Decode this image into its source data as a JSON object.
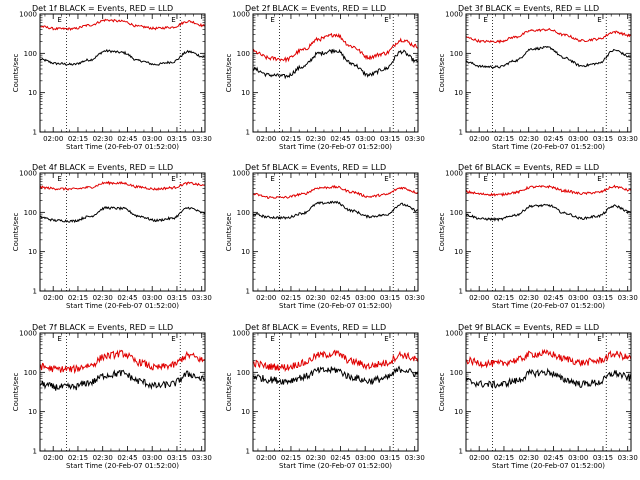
{
  "figure": {
    "xlabel": "Start Time (20-Feb-07 01:52:00)",
    "ylabel": "Counts/sec",
    "marker": "E",
    "x_tick_labels": [
      "02:00",
      "02:15",
      "02:30",
      "02:45",
      "03:00",
      "03:15",
      "03:30"
    ],
    "y_tick_labels": [
      "1",
      "10",
      "100",
      "1000"
    ],
    "colors": {
      "events": "#000000",
      "lld": "#e00000",
      "axis": "#000000",
      "background": "#ffffff"
    }
  },
  "chart_data": [
    {
      "type": "line",
      "title": "Det 1f BLACK = Events, RED = LLD",
      "xlabel": "Start Time (20-Feb-07 01:52:00)",
      "ylabel": "Counts/sec",
      "x_unit": "minutes from 01:52:00",
      "xlim": [
        0,
        100
      ],
      "ylim": [
        1,
        1000
      ],
      "yscale": "log",
      "event_markers": [
        16,
        85
      ],
      "x": [
        0,
        10,
        20,
        30,
        40,
        50,
        60,
        70,
        80,
        90,
        100
      ],
      "series": [
        {
          "name": "Events",
          "color": "#000000",
          "values": [
            70,
            55,
            52,
            68,
            115,
            105,
            65,
            52,
            60,
            110,
            80
          ]
        },
        {
          "name": "LLD",
          "color": "#e00000",
          "values": [
            480,
            420,
            420,
            520,
            700,
            650,
            480,
            430,
            460,
            650,
            500
          ]
        }
      ]
    },
    {
      "type": "line",
      "title": "Det 2f BLACK = Events, RED = LLD",
      "xlabel": "Start Time (20-Feb-07 01:52:00)",
      "ylabel": "Counts/sec",
      "x_unit": "minutes from 01:52:00",
      "xlim": [
        0,
        100
      ],
      "ylim": [
        1,
        1000
      ],
      "yscale": "log",
      "event_markers": [
        16,
        85
      ],
      "x": [
        0,
        10,
        20,
        30,
        40,
        50,
        60,
        70,
        80,
        90,
        100
      ],
      "series": [
        {
          "name": "Events",
          "color": "#000000",
          "values": [
            40,
            28,
            26,
            45,
            100,
            120,
            55,
            28,
            40,
            110,
            60
          ]
        },
        {
          "name": "LLD",
          "color": "#e00000",
          "values": [
            110,
            75,
            70,
            120,
            230,
            300,
            150,
            80,
            100,
            220,
            150
          ]
        }
      ]
    },
    {
      "type": "line",
      "title": "Det 3f BLACK = Events, RED = LLD",
      "xlabel": "Start Time (20-Feb-07 01:52:00)",
      "ylabel": "Counts/sec",
      "x_unit": "minutes from 01:52:00",
      "xlim": [
        0,
        100
      ],
      "ylim": [
        1,
        1000
      ],
      "yscale": "log",
      "event_markers": [
        16,
        85
      ],
      "x": [
        0,
        10,
        20,
        30,
        40,
        50,
        60,
        70,
        80,
        90,
        100
      ],
      "series": [
        {
          "name": "Events",
          "color": "#000000",
          "values": [
            60,
            46,
            45,
            65,
            130,
            140,
            75,
            48,
            55,
            120,
            80
          ]
        },
        {
          "name": "LLD",
          "color": "#e00000",
          "values": [
            250,
            200,
            200,
            260,
            380,
            400,
            290,
            210,
            230,
            350,
            280
          ]
        }
      ]
    },
    {
      "type": "line",
      "title": "Det 4f BLACK = Events, RED = LLD",
      "xlabel": "Start Time (20-Feb-07 01:52:00)",
      "ylabel": "Counts/sec",
      "x_unit": "minutes from 01:52:00",
      "xlim": [
        0,
        100
      ],
      "ylim": [
        1,
        1000
      ],
      "yscale": "log",
      "event_markers": [
        16,
        85
      ],
      "x": [
        0,
        10,
        20,
        30,
        40,
        50,
        60,
        70,
        80,
        90,
        100
      ],
      "series": [
        {
          "name": "Events",
          "color": "#000000",
          "values": [
            75,
            62,
            60,
            78,
            130,
            125,
            80,
            62,
            70,
            130,
            95
          ]
        },
        {
          "name": "LLD",
          "color": "#e00000",
          "values": [
            430,
            400,
            390,
            430,
            560,
            550,
            440,
            390,
            420,
            550,
            480
          ]
        }
      ]
    },
    {
      "type": "line",
      "title": "Det 5f BLACK = Events, RED = LLD",
      "xlabel": "Start Time (20-Feb-07 01:52:00)",
      "ylabel": "Counts/sec",
      "x_unit": "minutes from 01:52:00",
      "xlim": [
        0,
        100
      ],
      "ylim": [
        1,
        1000
      ],
      "yscale": "log",
      "event_markers": [
        16,
        85
      ],
      "x": [
        0,
        10,
        20,
        30,
        40,
        50,
        60,
        70,
        80,
        90,
        100
      ],
      "series": [
        {
          "name": "Events",
          "color": "#000000",
          "values": [
            90,
            75,
            72,
            95,
            170,
            180,
            110,
            78,
            85,
            160,
            110
          ]
        },
        {
          "name": "LLD",
          "color": "#e00000",
          "values": [
            290,
            240,
            240,
            290,
            420,
            440,
            330,
            250,
            280,
            420,
            320
          ]
        }
      ]
    },
    {
      "type": "line",
      "title": "Det 6f BLACK = Events, RED = LLD",
      "xlabel": "Start Time (20-Feb-07 01:52:00)",
      "ylabel": "Counts/sec",
      "x_unit": "minutes from 01:52:00",
      "xlim": [
        0,
        100
      ],
      "ylim": [
        1,
        1000
      ],
      "yscale": "log",
      "event_markers": [
        16,
        85
      ],
      "x": [
        0,
        10,
        20,
        30,
        40,
        50,
        60,
        70,
        80,
        90,
        100
      ],
      "series": [
        {
          "name": "Events",
          "color": "#000000",
          "values": [
            85,
            68,
            66,
            85,
            145,
            150,
            95,
            70,
            80,
            145,
            100
          ]
        },
        {
          "name": "LLD",
          "color": "#e00000",
          "values": [
            330,
            290,
            280,
            320,
            440,
            450,
            350,
            300,
            320,
            450,
            360
          ]
        }
      ]
    },
    {
      "type": "line",
      "title": "Det 7f BLACK = Events, RED = LLD",
      "xlabel": "Start Time (20-Feb-07 01:52:00)",
      "ylabel": "Counts/sec",
      "x_unit": "minutes from 01:52:00",
      "xlim": [
        0,
        100
      ],
      "ylim": [
        1,
        1000
      ],
      "yscale": "log",
      "event_markers": [
        16,
        85
      ],
      "x": [
        0,
        10,
        20,
        30,
        40,
        50,
        60,
        70,
        80,
        90,
        100
      ],
      "series": [
        {
          "name": "Events",
          "color": "#000000",
          "values": [
            50,
            42,
            42,
            55,
            85,
            95,
            60,
            45,
            50,
            90,
            65
          ]
        },
        {
          "name": "LLD",
          "color": "#e00000",
          "values": [
            140,
            120,
            120,
            150,
            260,
            300,
            180,
            130,
            150,
            270,
            200
          ]
        }
      ]
    },
    {
      "type": "line",
      "title": "Det 8f BLACK = Events, RED = LLD",
      "xlabel": "Start Time (20-Feb-07 01:52:00)",
      "ylabel": "Counts/sec",
      "x_unit": "minutes from 01:52:00",
      "xlim": [
        0,
        100
      ],
      "ylim": [
        1,
        1000
      ],
      "yscale": "log",
      "event_markers": [
        16,
        85
      ],
      "x": [
        0,
        10,
        20,
        30,
        40,
        50,
        60,
        70,
        80,
        90,
        100
      ],
      "series": [
        {
          "name": "Events",
          "color": "#000000",
          "values": [
            80,
            65,
            60,
            75,
            110,
            115,
            75,
            60,
            70,
            120,
            90
          ]
        },
        {
          "name": "LLD",
          "color": "#e00000",
          "values": [
            170,
            140,
            135,
            170,
            270,
            300,
            190,
            145,
            170,
            280,
            210
          ]
        }
      ]
    },
    {
      "type": "line",
      "title": "Det 9f BLACK = Events, RED = LLD",
      "xlabel": "Start Time (20-Feb-07 01:52:00)",
      "ylabel": "Counts/sec",
      "x_unit": "minutes from 01:52:00",
      "xlim": [
        0,
        100
      ],
      "ylim": [
        1,
        1000
      ],
      "yscale": "log",
      "event_markers": [
        16,
        85
      ],
      "x": [
        0,
        10,
        20,
        30,
        40,
        50,
        60,
        70,
        80,
        90,
        100
      ],
      "series": [
        {
          "name": "Events",
          "color": "#000000",
          "values": [
            60,
            50,
            48,
            60,
            95,
            100,
            65,
            50,
            55,
            95,
            70
          ]
        },
        {
          "name": "LLD",
          "color": "#e00000",
          "values": [
            200,
            170,
            165,
            200,
            290,
            300,
            220,
            175,
            195,
            290,
            230
          ]
        }
      ]
    }
  ]
}
